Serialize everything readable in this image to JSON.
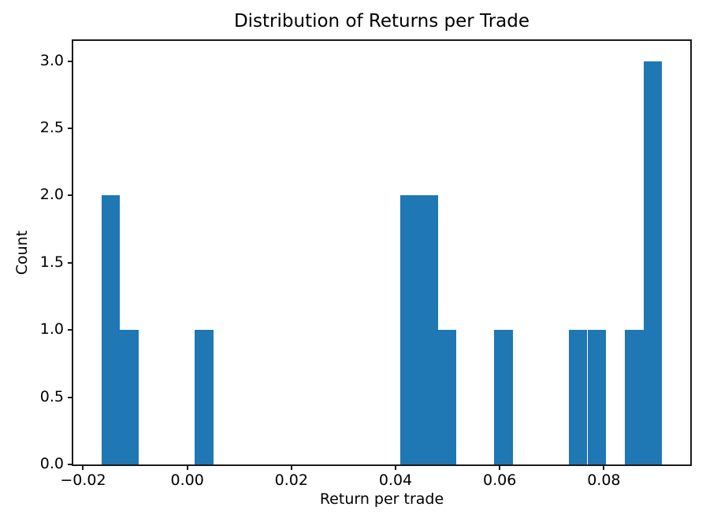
{
  "chart_data": {
    "type": "bar",
    "subtype": "histogram",
    "title": "Distribution of Returns per Trade",
    "xlabel": "Return per trade",
    "ylabel": "Count",
    "bar_color": "#1f77b4",
    "axis_color": "#1a1a1a",
    "bin_start": -0.0165,
    "bin_width": 0.00359,
    "counts": [
      2,
      1,
      0,
      0,
      0,
      1,
      0,
      0,
      0,
      0,
      0,
      0,
      0,
      0,
      0,
      0,
      2,
      2,
      1,
      0,
      0,
      1,
      0,
      0,
      0,
      1,
      1,
      0,
      1,
      3
    ],
    "total_observations": 16,
    "xlim": [
      -0.021885,
      0.096585
    ],
    "ylim": [
      0,
      3.15
    ],
    "grid": false,
    "legend": "none",
    "x_ticks": [
      {
        "value": -0.02,
        "label": "−0.02"
      },
      {
        "value": 0.0,
        "label": "0.00"
      },
      {
        "value": 0.02,
        "label": "0.02"
      },
      {
        "value": 0.04,
        "label": "0.04"
      },
      {
        "value": 0.06,
        "label": "0.06"
      },
      {
        "value": 0.08,
        "label": "0.08"
      }
    ],
    "y_ticks": [
      {
        "value": 0.0,
        "label": "0.0"
      },
      {
        "value": 0.5,
        "label": "0.5"
      },
      {
        "value": 1.0,
        "label": "1.0"
      },
      {
        "value": 1.5,
        "label": "1.5"
      },
      {
        "value": 2.0,
        "label": "2.0"
      },
      {
        "value": 2.5,
        "label": "2.5"
      },
      {
        "value": 3.0,
        "label": "3.0"
      }
    ]
  }
}
